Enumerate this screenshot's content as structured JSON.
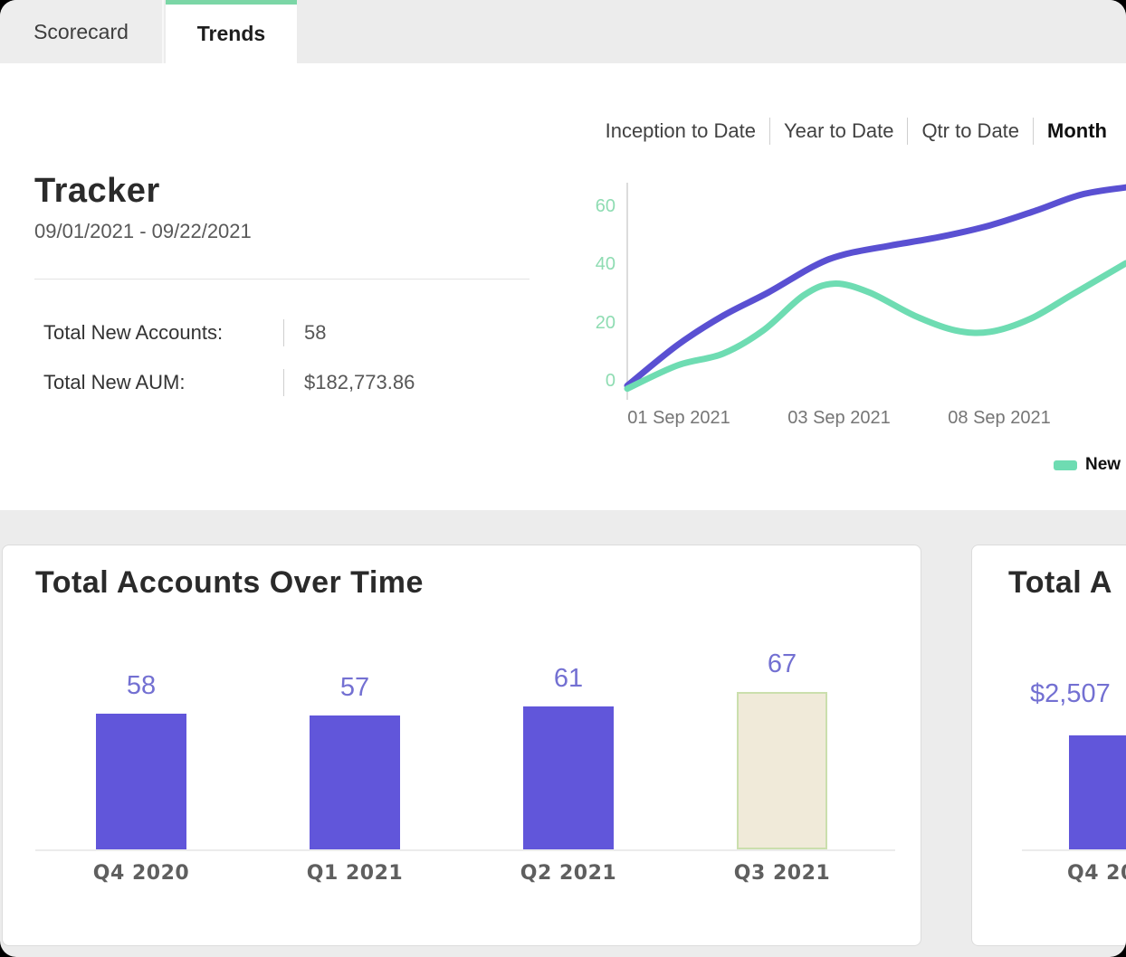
{
  "tabs": {
    "items": [
      {
        "label": "Scorecard",
        "active": false
      },
      {
        "label": "Trends",
        "active": true
      }
    ],
    "active_underline_color": "#7bd6a6"
  },
  "tracker": {
    "title": "Tracker",
    "date_range": "09/01/2021 - 09/22/2021",
    "stats": [
      {
        "label": "Total New Accounts:",
        "value": "58"
      },
      {
        "label": "Total New AUM:",
        "value": "$182,773.86"
      }
    ]
  },
  "period_selector": {
    "options": [
      "Inception to Date",
      "Year to Date",
      "Qtr to Date",
      "Month"
    ],
    "selected": "Month"
  },
  "legend": {
    "label_visible": "New",
    "swatch_color": "#6edcb2"
  },
  "colors": {
    "purple_line": "#5a50d2",
    "green_line": "#6edcb2",
    "bar_purple": "#6156da",
    "bar_beige_fill": "#f0ead9",
    "bar_beige_border": "#cbdfad",
    "ytick_green": "#8edcb2"
  },
  "chart_data": [
    {
      "type": "line",
      "x_labels": [
        "01 Sep 2021",
        "03 Sep 2021",
        "08 Sep 2021"
      ],
      "yticks": [
        0,
        20,
        40,
        60
      ],
      "ylim": [
        -3,
        66
      ],
      "grid": false,
      "legend_position": "bottom-right",
      "legend_visible_labels": [
        "New"
      ],
      "series": [
        {
          "name": "purple",
          "color": "#5a50d2",
          "points": [
            [
              0,
              -2
            ],
            [
              0.1,
              12
            ],
            [
              0.19,
              22
            ],
            [
              0.28,
              30
            ],
            [
              0.37,
              39
            ],
            [
              0.43,
              43
            ],
            [
              0.52,
              46
            ],
            [
              0.62,
              49
            ],
            [
              0.72,
              53
            ],
            [
              0.81,
              58
            ],
            [
              0.9,
              63.5
            ],
            [
              0.989,
              66
            ]
          ]
        },
        {
          "name": "New",
          "color": "#6edcb2",
          "points": [
            [
              0,
              -3
            ],
            [
              0.1,
              5
            ],
            [
              0.19,
              9
            ],
            [
              0.27,
              17
            ],
            [
              0.35,
              29
            ],
            [
              0.41,
              33
            ],
            [
              0.48,
              30
            ],
            [
              0.57,
              22
            ],
            [
              0.65,
              17
            ],
            [
              0.72,
              16.5
            ],
            [
              0.8,
              21
            ],
            [
              0.88,
              29
            ],
            [
              0.989,
              40
            ]
          ]
        }
      ]
    },
    {
      "type": "bar",
      "title": "Total Accounts Over Time",
      "categories": [
        "Q4 2020",
        "Q1 2021",
        "Q2 2021",
        "Q3 2021"
      ],
      "values": [
        58,
        57,
        61,
        67
      ],
      "bars": [
        {
          "fill": "#6156da",
          "border": ""
        },
        {
          "fill": "#6156da",
          "border": ""
        },
        {
          "fill": "#6156da",
          "border": ""
        },
        {
          "fill": "#f0ead9",
          "border": "#cbdfad"
        }
      ],
      "value_label_color": "#7370d2"
    },
    {
      "type": "bar",
      "title_visible": "Total A",
      "categories_visible": [
        "Q4 20"
      ],
      "value_labels_visible": [
        "$2,507"
      ],
      "bars": [
        {
          "fill": "#6156da",
          "border": ""
        }
      ]
    }
  ]
}
